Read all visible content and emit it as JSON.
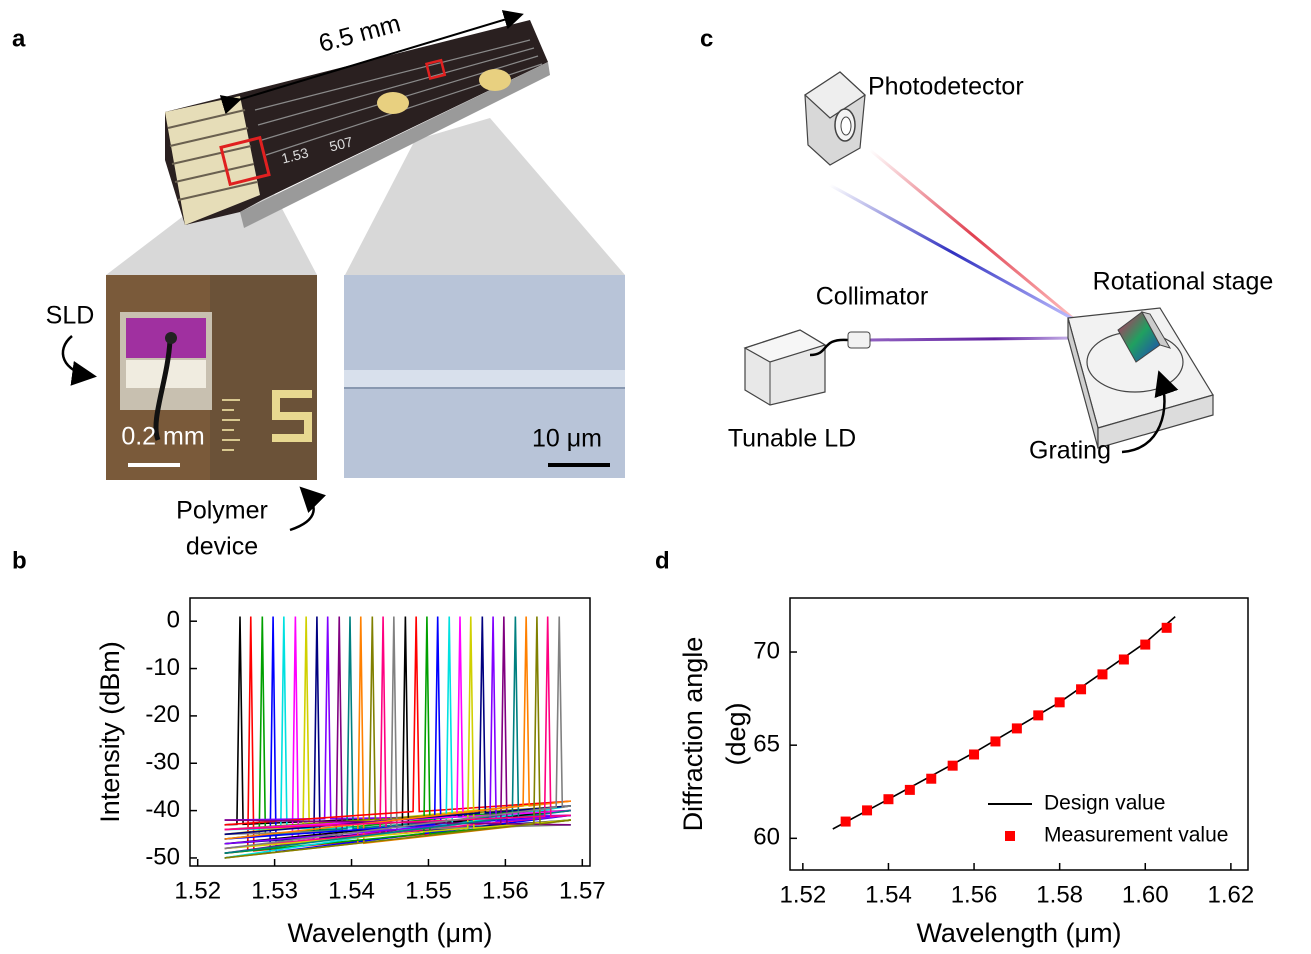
{
  "panels": {
    "a": "a",
    "b": "b",
    "c": "c",
    "d": "d"
  },
  "panel_a": {
    "length": "6.5 mm",
    "chip_marks": [
      "1.53",
      "507"
    ],
    "sld": "SLD",
    "scale_left": "0.2 mm",
    "scale_right": "10 μm",
    "polymer": [
      "Polymer",
      "device"
    ]
  },
  "panel_c": {
    "photodetector": "Photodetector",
    "collimator": "Collimator",
    "tunable_ld": "Tunable LD",
    "stage": "Rotational stage",
    "grating": "Grating"
  },
  "chart_data": [
    {
      "type": "line",
      "xlabel": "Wavelength (μm)",
      "ylabel": [
        "Intensity (dBm)"
      ],
      "xlim": [
        1.519,
        1.571
      ],
      "ylim": [
        -51.7,
        4.9
      ],
      "xticks": [
        1.52,
        1.53,
        1.54,
        1.55,
        1.56,
        1.57
      ],
      "yticks": [
        0,
        -10,
        -20,
        -30,
        -40,
        -50
      ],
      "series": [
        {
          "color": "#000000",
          "x": [
            1.5235,
            1.5251,
            1.5255,
            1.5259,
            1.5685
          ],
          "values": [
            -43,
            -42.9,
            1,
            -42.9,
            -40
          ]
        },
        {
          "color": "#FF0000",
          "x": [
            1.5235,
            1.5265,
            1.5269,
            1.5273,
            1.5685
          ],
          "values": [
            -49,
            -48.5,
            1,
            -48.5,
            -42
          ]
        },
        {
          "color": "#00A000",
          "x": [
            1.5235,
            1.528,
            1.5284,
            1.5288,
            1.5685
          ],
          "values": [
            -46,
            -45.2,
            1,
            -45.2,
            -39
          ]
        },
        {
          "color": "#0000FF",
          "x": [
            1.5235,
            1.5294,
            1.5298,
            1.5302,
            1.5685
          ],
          "values": [
            -50,
            -48.7,
            1,
            -48.7,
            -41
          ]
        },
        {
          "color": "#00E0E0",
          "x": [
            1.5235,
            1.5308,
            1.5312,
            1.5316,
            1.5685
          ],
          "values": [
            -44,
            -43.8,
            1,
            -43.8,
            -43
          ]
        },
        {
          "color": "#FF00FF",
          "x": [
            1.5235,
            1.5323,
            1.5327,
            1.5331,
            1.5685
          ],
          "values": [
            -48,
            -46.4,
            1,
            -46.4,
            -40
          ]
        },
        {
          "color": "#D0D000",
          "x": [
            1.5235,
            1.5337,
            1.5341,
            1.5345,
            1.5685
          ],
          "values": [
            -45,
            -43.3,
            1,
            -43.3,
            -38
          ]
        },
        {
          "color": "#000080",
          "x": [
            1.5235,
            1.5351,
            1.5355,
            1.5359,
            1.5685
          ],
          "values": [
            -47,
            -45.7,
            1,
            -45.7,
            -42
          ]
        },
        {
          "color": "#8000FF",
          "x": [
            1.5235,
            1.5365,
            1.5369,
            1.5373,
            1.5685
          ],
          "values": [
            -42,
            -41.7,
            1,
            -41.7,
            -41
          ]
        },
        {
          "color": "#800080",
          "x": [
            1.5235,
            1.538,
            1.5384,
            1.5388,
            1.5685
          ],
          "values": [
            -49,
            -45.7,
            1,
            -45.7,
            -39
          ]
        },
        {
          "color": "#008080",
          "x": [
            1.5235,
            1.5394,
            1.5398,
            1.5402,
            1.5685
          ],
          "values": [
            -46,
            -43.8,
            1,
            -43.8,
            -40
          ]
        },
        {
          "color": "#FF8000",
          "x": [
            1.5235,
            1.5408,
            1.5412,
            1.5416,
            1.5685
          ],
          "values": [
            -50,
            -46.9,
            1,
            -46.9,
            -42
          ]
        },
        {
          "color": "#808000",
          "x": [
            1.5235,
            1.5423,
            1.5427,
            1.5431,
            1.5685
          ],
          "values": [
            -44,
            -41.9,
            1,
            -41.9,
            -39
          ]
        },
        {
          "color": "#FF0080",
          "x": [
            1.5235,
            1.5437,
            1.5441,
            1.5445,
            1.5685
          ],
          "values": [
            -48,
            -44.8,
            1,
            -44.8,
            -41
          ]
        },
        {
          "color": "#808080",
          "x": [
            1.5235,
            1.5451,
            1.5455,
            1.5459,
            1.5685
          ],
          "values": [
            -45,
            -44,
            1,
            -44,
            -43
          ]
        },
        {
          "color": "#000000",
          "x": [
            1.5235,
            1.5466,
            1.547,
            1.5474,
            1.5685
          ],
          "values": [
            -47,
            -43.3,
            1,
            -43.3,
            -40
          ]
        },
        {
          "color": "#FF0000",
          "x": [
            1.5235,
            1.548,
            1.5484,
            1.5488,
            1.5685
          ],
          "values": [
            -43,
            -40.2,
            1,
            -40.2,
            -38
          ]
        },
        {
          "color": "#00A000",
          "x": [
            1.5235,
            1.5494,
            1.5498,
            1.5502,
            1.5685
          ],
          "values": [
            -49,
            -44.9,
            1,
            -44.9,
            -42
          ]
        },
        {
          "color": "#0000FF",
          "x": [
            1.5235,
            1.5508,
            1.5512,
            1.5516,
            1.5685
          ],
          "values": [
            -46,
            -42.9,
            1,
            -42.9,
            -41
          ]
        },
        {
          "color": "#00E0E0",
          "x": [
            1.5235,
            1.5523,
            1.5527,
            1.5531,
            1.5685
          ],
          "values": [
            -50,
            -42.9,
            1,
            -42.9,
            -39
          ]
        },
        {
          "color": "#FF00FF",
          "x": [
            1.5235,
            1.5537,
            1.5541,
            1.5545,
            1.5685
          ],
          "values": [
            -44,
            -41.3,
            1,
            -41.3,
            -40
          ]
        },
        {
          "color": "#D0D000",
          "x": [
            1.5235,
            1.5551,
            1.5555,
            1.5559,
            1.5685
          ],
          "values": [
            -48,
            -43.7,
            1,
            -43.7,
            -42
          ]
        },
        {
          "color": "#000080",
          "x": [
            1.5235,
            1.5566,
            1.557,
            1.5574,
            1.5685
          ],
          "values": [
            -45,
            -40.5,
            1,
            -40.5,
            -39
          ]
        },
        {
          "color": "#8000FF",
          "x": [
            1.5235,
            1.558,
            1.5584,
            1.5588,
            1.5685
          ],
          "values": [
            -47,
            -42.3,
            1,
            -42.3,
            -41
          ]
        },
        {
          "color": "#800080",
          "x": [
            1.5235,
            1.5594,
            1.5598,
            1.5602,
            1.5685
          ],
          "values": [
            -42,
            -42.8,
            1,
            -42.8,
            -43
          ]
        },
        {
          "color": "#008080",
          "x": [
            1.5235,
            1.5609,
            1.5613,
            1.5617,
            1.5685
          ],
          "values": [
            -49,
            -41.4,
            1,
            -41.4,
            -40
          ]
        },
        {
          "color": "#FF8000",
          "x": [
            1.5235,
            1.5623,
            1.5627,
            1.5631,
            1.5685
          ],
          "values": [
            -46,
            -39,
            1,
            -39,
            -38
          ]
        },
        {
          "color": "#808000",
          "x": [
            1.5235,
            1.5637,
            1.5641,
            1.5645,
            1.5685
          ],
          "values": [
            -50,
            -42.8,
            1,
            -42.8,
            -42
          ]
        },
        {
          "color": "#FF0080",
          "x": [
            1.5235,
            1.5651,
            1.5655,
            1.5659,
            1.5685
          ],
          "values": [
            -44,
            -41.2,
            1,
            -41.2,
            -41
          ]
        },
        {
          "color": "#808080",
          "x": [
            1.5235,
            1.5666,
            1.567,
            1.5674,
            1.5685
          ],
          "values": [
            -48,
            -39.3,
            1,
            -39.3,
            -39
          ]
        }
      ]
    },
    {
      "type": "line",
      "xlabel": "Wavelength (μm)",
      "ylabel": [
        "Diffraction angle",
        "(deg)"
      ],
      "xlim": [
        1.517,
        1.624
      ],
      "ylim": [
        58.3,
        72.9
      ],
      "xticks": [
        1.52,
        1.54,
        1.56,
        1.58,
        {
          "value": 1.6,
          "label": "1.60"
        },
        1.62
      ],
      "yticks": [
        60,
        65,
        70
      ],
      "legend": "lower right",
      "series": [
        {
          "name": "Design value",
          "color": "#000000",
          "mode": "line",
          "x": [
            1.527,
            1.54,
            1.56,
            1.58,
            1.6,
            1.607
          ],
          "values": [
            60.5,
            62.1,
            64.6,
            67.3,
            70.5,
            71.9
          ]
        },
        {
          "name": "Measurement value",
          "color": "#FF0000",
          "mode": "markers",
          "x": [
            1.53,
            1.535,
            1.54,
            1.545,
            1.55,
            1.555,
            1.56,
            1.565,
            1.57,
            1.575,
            1.58,
            1.585,
            1.59,
            1.595,
            1.6,
            1.605
          ],
          "values": [
            60.9,
            61.5,
            62.1,
            62.6,
            63.2,
            63.9,
            64.5,
            65.2,
            65.9,
            66.6,
            67.3,
            68.0,
            68.8,
            69.6,
            70.4,
            71.3
          ]
        }
      ]
    }
  ]
}
